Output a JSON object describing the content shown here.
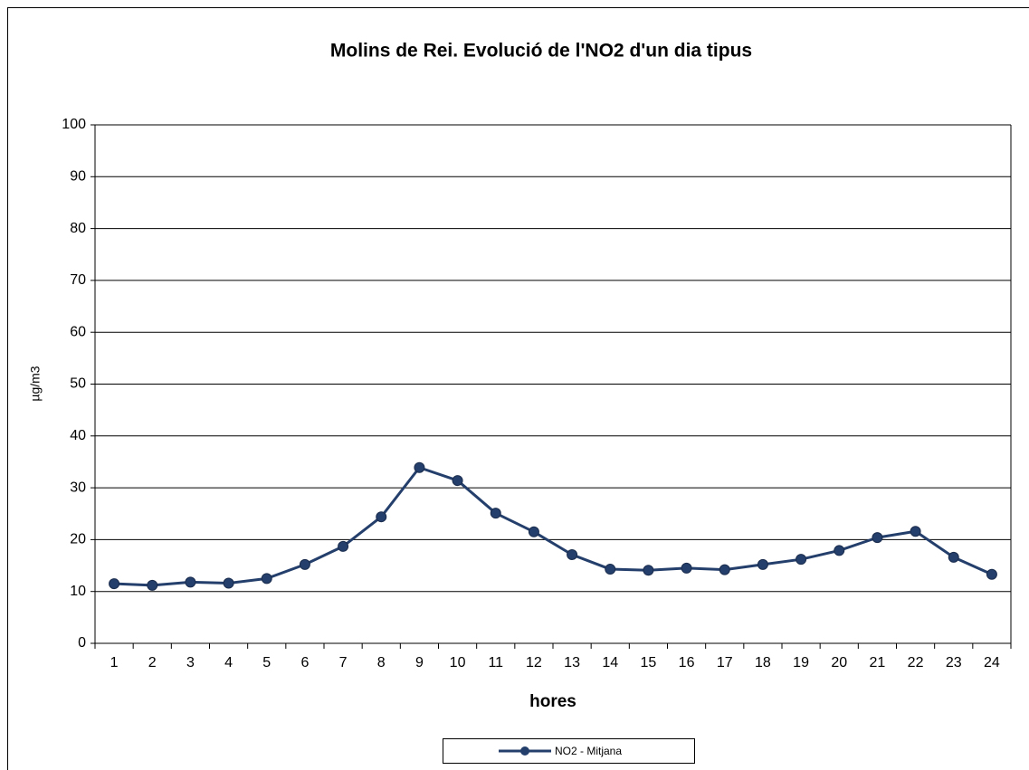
{
  "chart_data": {
    "type": "line",
    "title": "Molins de Rei. Evolució de l'NO2 d'un dia tipus",
    "x_label": "hores",
    "y_label": "µg/m3",
    "categories": [
      "1",
      "2",
      "3",
      "4",
      "5",
      "6",
      "7",
      "8",
      "9",
      "10",
      "11",
      "12",
      "13",
      "14",
      "15",
      "16",
      "17",
      "18",
      "19",
      "20",
      "21",
      "22",
      "23",
      "24"
    ],
    "series": [
      {
        "name": "NO2 - Mitjana",
        "color": "#243f6b",
        "values": [
          11.5,
          11.2,
          11.8,
          11.6,
          12.5,
          15.2,
          18.7,
          24.4,
          33.9,
          31.4,
          25.1,
          21.5,
          17.1,
          14.3,
          14.1,
          14.5,
          14.2,
          15.2,
          16.2,
          17.9,
          20.4,
          21.6,
          16.6,
          13.3
        ]
      }
    ],
    "ylim": [
      0,
      100
    ],
    "yticks": [
      0,
      10,
      20,
      30,
      40,
      50,
      60,
      70,
      80,
      90,
      100
    ],
    "grid": true,
    "legend": "bottom"
  }
}
